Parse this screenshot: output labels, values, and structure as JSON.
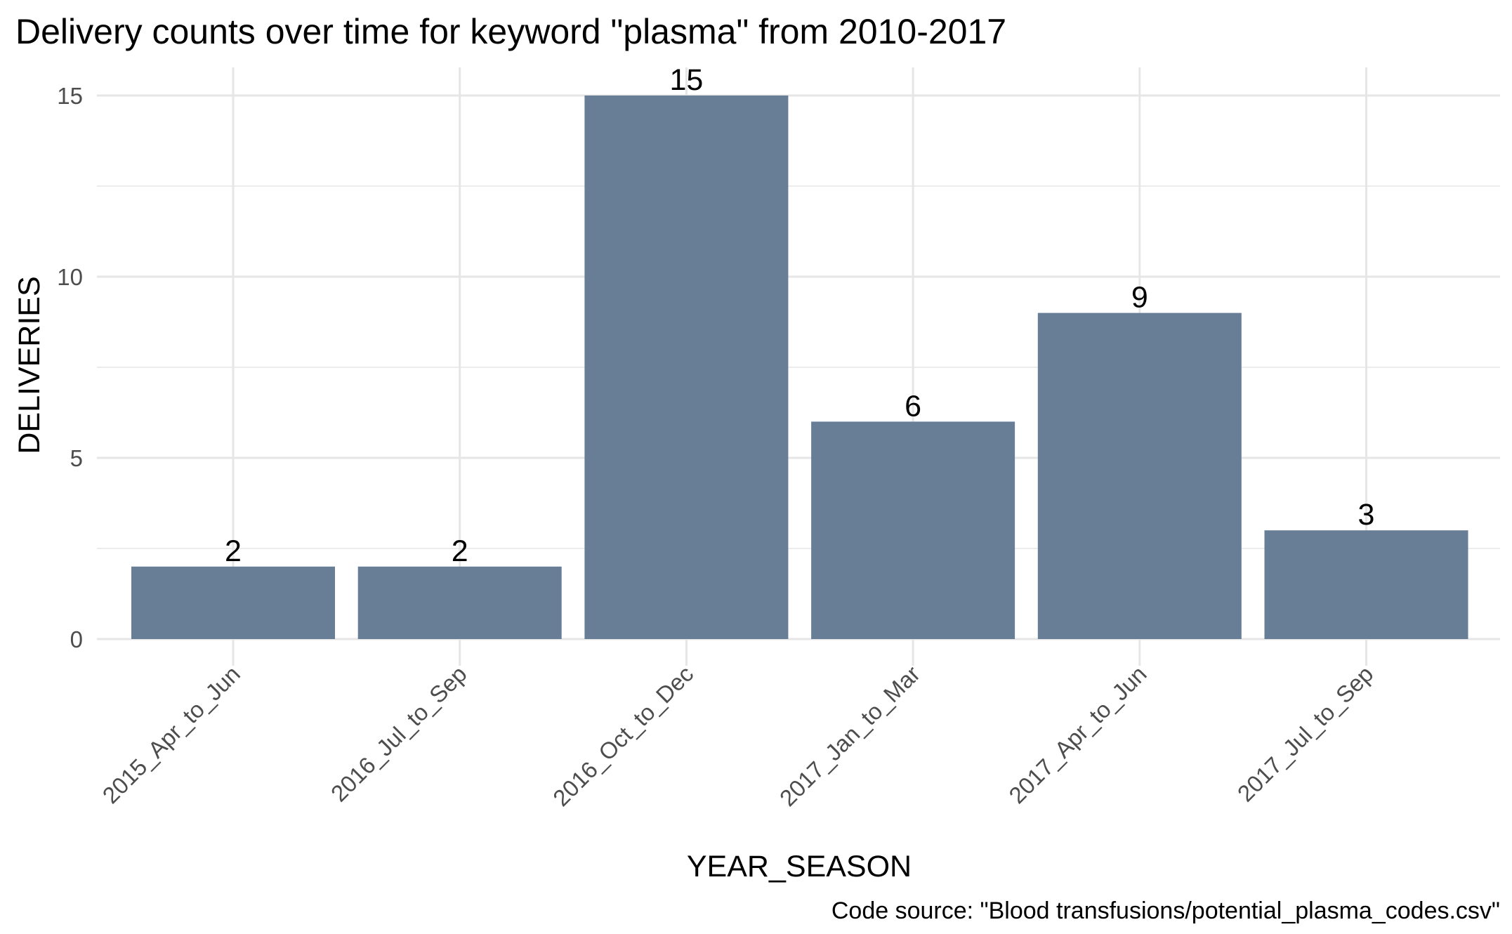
{
  "chart_data": {
    "type": "bar",
    "title": "Delivery counts over time for keyword \"plasma\" from 2010-2017",
    "caption": "Code source: \"Blood transfusions/potential_plasma_codes.csv\"",
    "xlabel": "YEAR_SEASON",
    "ylabel": "DELIVERIES",
    "categories": [
      "2015_Apr_to_Jun",
      "2016_Jul_to_Sep",
      "2016_Oct_to_Dec",
      "2017_Jan_to_Mar",
      "2017_Apr_to_Jun",
      "2017_Jul_to_Sep"
    ],
    "values": [
      2,
      2,
      15,
      6,
      9,
      3
    ],
    "data_labels": [
      "2",
      "2",
      "15",
      "6",
      "9",
      "3"
    ],
    "yticks": [
      0,
      5,
      10,
      15
    ],
    "ytick_labels": [
      "0",
      "5",
      "10",
      "15"
    ],
    "ylim": [
      -0.4,
      15.8
    ],
    "grid": true,
    "legend": "none",
    "bar_color": "#687d96",
    "x_tick_rotation": "45"
  }
}
